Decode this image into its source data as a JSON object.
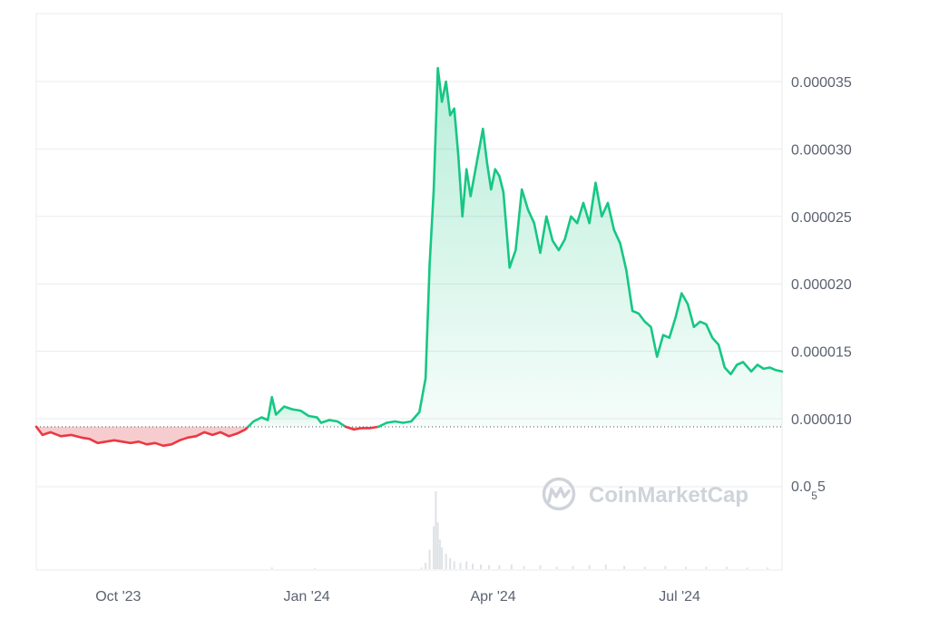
{
  "watermark": {
    "text": "CoinMarketCap",
    "logo_icon": "coinmarketcap-logo-icon"
  },
  "colors": {
    "up_line": "#16c784",
    "up_fill_top": "#16c784",
    "down_line": "#ea3943",
    "down_fill": "#f6c3c6",
    "grid": "#e9ebee",
    "baseline": "#5b6270",
    "tick_text": "#5b6270",
    "volume": "#dfe2e6",
    "watermark": "#cfd3da"
  },
  "chart_data": {
    "type": "area",
    "title": "",
    "xlabel": "",
    "ylabel": "",
    "y_axis_position": "right",
    "grid": true,
    "legend": "none",
    "x_tick_labels": [
      "Oct '23",
      "Jan '24",
      "Apr '24",
      "Jul '24"
    ],
    "x_tick_dates": [
      "2023-10-01",
      "2024-01-01",
      "2024-04-01",
      "2024-07-01"
    ],
    "y_tick_labels": [
      "0.000035",
      "0.000030",
      "0.000025",
      "0.000020",
      "0.000015",
      "0.000010"
    ],
    "y_tick_values": [
      3.5e-05,
      3e-05,
      2.5e-05,
      2e-05,
      1.5e-05,
      1e-05
    ],
    "volume_axis_label": {
      "main": "0.0",
      "sub": "5",
      "tail": "5"
    },
    "ylim": [
      5e-06,
      4e-05
    ],
    "xlim": [
      "2023-08-22",
      "2024-08-20"
    ],
    "baseline_value": 9.4e-06,
    "series": [
      {
        "type": "price",
        "points": [
          [
            "2023-08-22",
            9.4e-06
          ],
          [
            "2023-08-25",
            8.8e-06
          ],
          [
            "2023-08-29",
            9e-06
          ],
          [
            "2023-09-03",
            8.7e-06
          ],
          [
            "2023-09-08",
            8.8e-06
          ],
          [
            "2023-09-13",
            8.6e-06
          ],
          [
            "2023-09-17",
            8.5e-06
          ],
          [
            "2023-09-21",
            8.2e-06
          ],
          [
            "2023-09-25",
            8.3e-06
          ],
          [
            "2023-09-29",
            8.4e-06
          ],
          [
            "2023-10-03",
            8.3e-06
          ],
          [
            "2023-10-07",
            8.2e-06
          ],
          [
            "2023-10-11",
            8.3e-06
          ],
          [
            "2023-10-15",
            8.1e-06
          ],
          [
            "2023-10-19",
            8.2e-06
          ],
          [
            "2023-10-23",
            8e-06
          ],
          [
            "2023-10-27",
            8.1e-06
          ],
          [
            "2023-10-31",
            8.4e-06
          ],
          [
            "2023-11-04",
            8.6e-06
          ],
          [
            "2023-11-08",
            8.7e-06
          ],
          [
            "2023-11-12",
            9e-06
          ],
          [
            "2023-11-16",
            8.8e-06
          ],
          [
            "2023-11-20",
            9e-06
          ],
          [
            "2023-11-24",
            8.7e-06
          ],
          [
            "2023-11-28",
            8.9e-06
          ],
          [
            "2023-12-02",
            9.2e-06
          ],
          [
            "2023-12-06",
            9.8e-06
          ],
          [
            "2023-12-10",
            1.01e-05
          ],
          [
            "2023-12-13",
            9.9e-06
          ],
          [
            "2023-12-15",
            1.16e-05
          ],
          [
            "2023-12-17",
            1.03e-05
          ],
          [
            "2023-12-21",
            1.09e-05
          ],
          [
            "2023-12-25",
            1.07e-05
          ],
          [
            "2023-12-29",
            1.06e-05
          ],
          [
            "2024-01-02",
            1.02e-05
          ],
          [
            "2024-01-06",
            1.01e-05
          ],
          [
            "2024-01-08",
            9.7e-06
          ],
          [
            "2024-01-12",
            9.9e-06
          ],
          [
            "2024-01-16",
            9.8e-06
          ],
          [
            "2024-01-20",
            9.4e-06
          ],
          [
            "2024-01-24",
            9.2e-06
          ],
          [
            "2024-01-28",
            9.3e-06
          ],
          [
            "2024-02-01",
            9.3e-06
          ],
          [
            "2024-02-05",
            9.4e-06
          ],
          [
            "2024-02-09",
            9.7e-06
          ],
          [
            "2024-02-13",
            9.8e-06
          ],
          [
            "2024-02-17",
            9.7e-06
          ],
          [
            "2024-02-21",
            9.8e-06
          ],
          [
            "2024-02-25",
            1.05e-05
          ],
          [
            "2024-02-28",
            1.3e-05
          ],
          [
            "2024-03-01",
            2.15e-05
          ],
          [
            "2024-03-03",
            2.7e-05
          ],
          [
            "2024-03-05",
            3.6e-05
          ],
          [
            "2024-03-07",
            3.35e-05
          ],
          [
            "2024-03-09",
            3.5e-05
          ],
          [
            "2024-03-11",
            3.25e-05
          ],
          [
            "2024-03-13",
            3.3e-05
          ],
          [
            "2024-03-15",
            2.95e-05
          ],
          [
            "2024-03-17",
            2.5e-05
          ],
          [
            "2024-03-19",
            2.85e-05
          ],
          [
            "2024-03-21",
            2.65e-05
          ],
          [
            "2024-03-24",
            2.9e-05
          ],
          [
            "2024-03-27",
            3.15e-05
          ],
          [
            "2024-03-29",
            2.9e-05
          ],
          [
            "2024-03-31",
            2.7e-05
          ],
          [
            "2024-04-02",
            2.85e-05
          ],
          [
            "2024-04-04",
            2.8e-05
          ],
          [
            "2024-04-06",
            2.68e-05
          ],
          [
            "2024-04-09",
            2.12e-05
          ],
          [
            "2024-04-12",
            2.25e-05
          ],
          [
            "2024-04-15",
            2.7e-05
          ],
          [
            "2024-04-18",
            2.55e-05
          ],
          [
            "2024-04-21",
            2.45e-05
          ],
          [
            "2024-04-24",
            2.23e-05
          ],
          [
            "2024-04-27",
            2.5e-05
          ],
          [
            "2024-04-30",
            2.32e-05
          ],
          [
            "2024-05-03",
            2.25e-05
          ],
          [
            "2024-05-06",
            2.33e-05
          ],
          [
            "2024-05-09",
            2.5e-05
          ],
          [
            "2024-05-12",
            2.45e-05
          ],
          [
            "2024-05-15",
            2.6e-05
          ],
          [
            "2024-05-18",
            2.45e-05
          ],
          [
            "2024-05-21",
            2.75e-05
          ],
          [
            "2024-05-24",
            2.5e-05
          ],
          [
            "2024-05-27",
            2.6e-05
          ],
          [
            "2024-05-30",
            2.4e-05
          ],
          [
            "2024-06-02",
            2.3e-05
          ],
          [
            "2024-06-05",
            2.1e-05
          ],
          [
            "2024-06-08",
            1.8e-05
          ],
          [
            "2024-06-11",
            1.78e-05
          ],
          [
            "2024-06-14",
            1.72e-05
          ],
          [
            "2024-06-17",
            1.68e-05
          ],
          [
            "2024-06-20",
            1.46e-05
          ],
          [
            "2024-06-23",
            1.62e-05
          ],
          [
            "2024-06-26",
            1.6e-05
          ],
          [
            "2024-06-29",
            1.75e-05
          ],
          [
            "2024-07-02",
            1.93e-05
          ],
          [
            "2024-07-05",
            1.85e-05
          ],
          [
            "2024-07-08",
            1.68e-05
          ],
          [
            "2024-07-11",
            1.72e-05
          ],
          [
            "2024-07-14",
            1.7e-05
          ],
          [
            "2024-07-17",
            1.6e-05
          ],
          [
            "2024-07-20",
            1.55e-05
          ],
          [
            "2024-07-23",
            1.38e-05
          ],
          [
            "2024-07-26",
            1.33e-05
          ],
          [
            "2024-07-29",
            1.4e-05
          ],
          [
            "2024-08-01",
            1.42e-05
          ],
          [
            "2024-08-05",
            1.35e-05
          ],
          [
            "2024-08-08",
            1.4e-05
          ],
          [
            "2024-08-11",
            1.37e-05
          ],
          [
            "2024-08-14",
            1.38e-05
          ],
          [
            "2024-08-17",
            1.36e-05
          ],
          [
            "2024-08-20",
            1.35e-05
          ]
        ]
      }
    ],
    "volume_bars": [
      [
        "2024-02-26",
        0.02
      ],
      [
        "2024-02-28",
        0.08
      ],
      [
        "2024-03-01",
        0.25
      ],
      [
        "2024-03-03",
        0.55
      ],
      [
        "2024-03-04",
        1.0
      ],
      [
        "2024-03-05",
        0.6
      ],
      [
        "2024-03-06",
        0.38
      ],
      [
        "2024-03-07",
        0.28
      ],
      [
        "2024-03-09",
        0.2
      ],
      [
        "2024-03-11",
        0.14
      ],
      [
        "2024-03-13",
        0.1
      ],
      [
        "2024-03-16",
        0.08
      ],
      [
        "2024-03-19",
        0.1
      ],
      [
        "2024-03-22",
        0.07
      ],
      [
        "2024-03-26",
        0.06
      ],
      [
        "2024-03-30",
        0.05
      ],
      [
        "2024-04-04",
        0.05
      ],
      [
        "2024-04-10",
        0.06
      ],
      [
        "2024-04-16",
        0.04
      ],
      [
        "2024-04-24",
        0.05
      ],
      [
        "2024-05-02",
        0.03
      ],
      [
        "2024-05-10",
        0.04
      ],
      [
        "2024-05-18",
        0.05
      ],
      [
        "2024-05-26",
        0.06
      ],
      [
        "2024-06-04",
        0.04
      ],
      [
        "2024-06-14",
        0.03
      ],
      [
        "2024-06-24",
        0.04
      ],
      [
        "2024-07-04",
        0.03
      ],
      [
        "2024-07-14",
        0.03
      ],
      [
        "2024-07-24",
        0.03
      ],
      [
        "2024-08-03",
        0.02
      ],
      [
        "2024-08-13",
        0.02
      ],
      [
        "2023-12-15",
        0.02
      ],
      [
        "2024-01-05",
        0.01
      ]
    ]
  }
}
